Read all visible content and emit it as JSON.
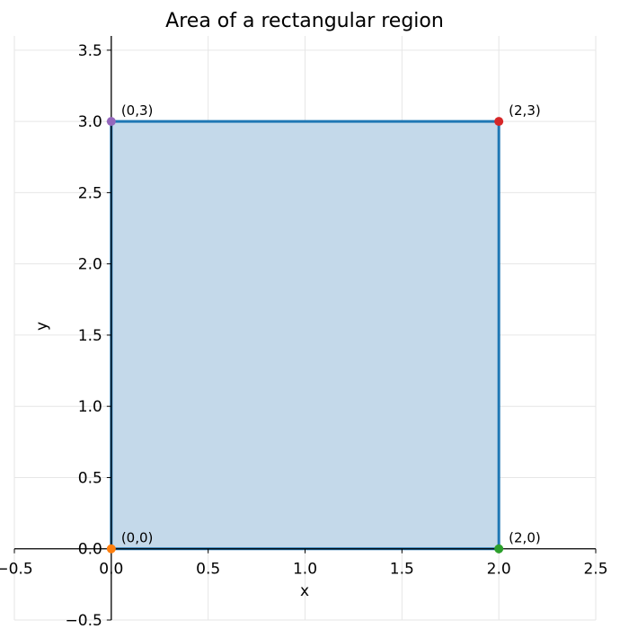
{
  "chart_data": {
    "type": "area",
    "title": "Area of a rectangular region",
    "xlabel": "x",
    "ylabel": "y",
    "xlim": [
      -0.5,
      2.5
    ],
    "ylim": [
      -0.5,
      3.6
    ],
    "x_ticks": [
      -0.5,
      0.0,
      0.5,
      1.0,
      1.5,
      2.0,
      2.5
    ],
    "y_ticks": [
      -0.5,
      0.0,
      0.5,
      1.0,
      1.5,
      2.0,
      2.5,
      3.0,
      3.5
    ],
    "x_tick_labels": [
      "−0.5",
      "0.0",
      "0.5",
      "1.0",
      "1.5",
      "2.0",
      "2.5"
    ],
    "y_tick_labels": [
      "−0.5",
      "0.0",
      "0.5",
      "1.0",
      "1.5",
      "2.0",
      "2.5",
      "3.0",
      "3.5"
    ],
    "grid": true,
    "region": {
      "vertices": [
        [
          0,
          0
        ],
        [
          2,
          0
        ],
        [
          2,
          3
        ],
        [
          0,
          3
        ]
      ],
      "fill_color": "#c4d9ea",
      "edge_color": "#1f77b4"
    },
    "points": [
      {
        "x": 0,
        "y": 0,
        "label": "(0,0)",
        "color": "#ff7f0e"
      },
      {
        "x": 2,
        "y": 0,
        "label": "(2,0)",
        "color": "#2ca02c"
      },
      {
        "x": 2,
        "y": 3,
        "label": "(2,3)",
        "color": "#d62728"
      },
      {
        "x": 0,
        "y": 3,
        "label": "(0,3)",
        "color": "#9467bd"
      }
    ]
  }
}
